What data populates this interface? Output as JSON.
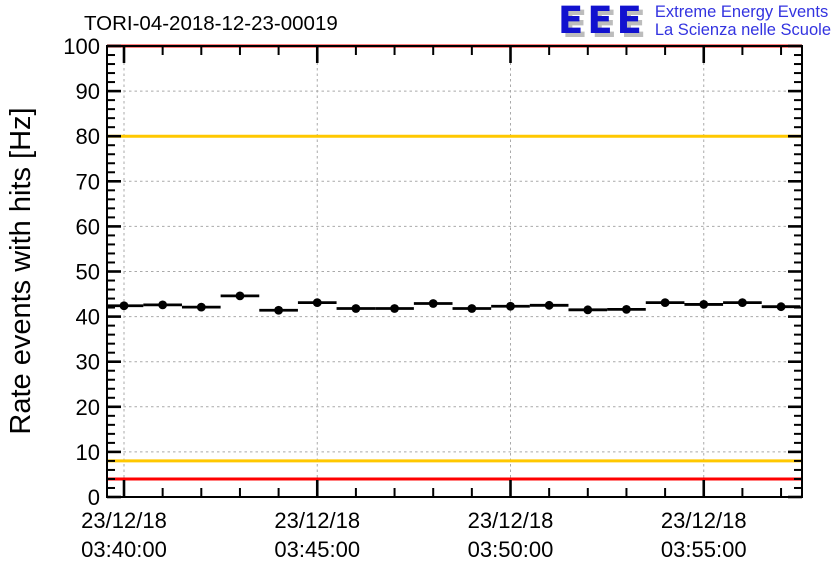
{
  "logo": {
    "eee": "EEE",
    "line1": "Extreme Energy Events",
    "line2": "La Scienza nelle Scuole",
    "text_color": "#3333e0",
    "eee_color": "#1111cf"
  },
  "chart_data": {
    "type": "scatter",
    "title": "TORI-04-2018-12-23-00019",
    "ylabel": "Rate events with hits [Hz]",
    "xlabel": "",
    "ylim": [
      0,
      100
    ],
    "y_major_step": 10,
    "y_minor_step": 2,
    "grid": true,
    "legend": "none",
    "date": "23/12/18",
    "x_axis_type": "time",
    "x_step_sec": 60,
    "x_error_sec": 30,
    "x_tick_labels": [
      {
        "date": "23/12/18",
        "time": "03:40:00"
      },
      {
        "date": "23/12/18",
        "time": "03:45:00"
      },
      {
        "date": "23/12/18",
        "time": "03:50:00"
      },
      {
        "date": "23/12/18",
        "time": "03:55:00"
      }
    ],
    "thresholds": [
      {
        "value": 100,
        "color": "#ff0000"
      },
      {
        "value": 80,
        "color": "#ffc800"
      },
      {
        "value": 8,
        "color": "#ffc800"
      },
      {
        "value": 4,
        "color": "#ff0000"
      }
    ],
    "series": [
      {
        "name": "rate-events-with-hits",
        "marker": "filled-circle",
        "color": "#000000",
        "points": [
          {
            "time": "03:40:00",
            "rate_hz": 42.4
          },
          {
            "time": "03:41:00",
            "rate_hz": 42.6
          },
          {
            "time": "03:42:00",
            "rate_hz": 42.1
          },
          {
            "time": "03:43:00",
            "rate_hz": 44.6
          },
          {
            "time": "03:44:00",
            "rate_hz": 41.4
          },
          {
            "time": "03:45:00",
            "rate_hz": 43.1
          },
          {
            "time": "03:46:00",
            "rate_hz": 41.8
          },
          {
            "time": "03:47:00",
            "rate_hz": 41.8
          },
          {
            "time": "03:48:00",
            "rate_hz": 42.9
          },
          {
            "time": "03:49:00",
            "rate_hz": 41.8
          },
          {
            "time": "03:50:00",
            "rate_hz": 42.3
          },
          {
            "time": "03:51:00",
            "rate_hz": 42.5
          },
          {
            "time": "03:52:00",
            "rate_hz": 41.5
          },
          {
            "time": "03:53:00",
            "rate_hz": 41.6
          },
          {
            "time": "03:54:00",
            "rate_hz": 43.1
          },
          {
            "time": "03:55:00",
            "rate_hz": 42.7
          },
          {
            "time": "03:56:00",
            "rate_hz": 43.1
          },
          {
            "time": "03:57:00",
            "rate_hz": 42.2
          }
        ]
      }
    ]
  }
}
